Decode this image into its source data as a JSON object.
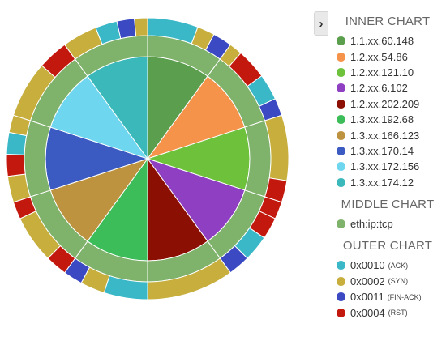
{
  "colors": {
    "inner": [
      "#5a9e4e",
      "#f5934a",
      "#6ec13b",
      "#8e3fc2",
      "#8b0f03",
      "#3dbd59",
      "#bd933f",
      "#3b5bc2",
      "#6fd6ef",
      "#3ab8ba"
    ],
    "middle": "#7fb26b",
    "outer": {
      "ACK": "#3ab8c7",
      "SYN": "#c7ae3d",
      "FIN-ACK": "#3b49c2",
      "RST": "#c2180e"
    }
  },
  "legend": {
    "toggle_icon": "chevron-right-icon",
    "toggle_glyph": "›",
    "inner_title": "INNER CHART",
    "middle_title": "MIDDLE CHART",
    "outer_title": "OUTER CHART",
    "inner_items": [
      {
        "label": "1.1.xx.60.148",
        "color": "#5a9e4e"
      },
      {
        "label": "1.2.xx.54.86",
        "color": "#f5934a"
      },
      {
        "label": "1.2.xx.121.10",
        "color": "#6ec13b"
      },
      {
        "label": "1.2.xx.6.102",
        "color": "#8e3fc2"
      },
      {
        "label": "1.2.xx.202.209",
        "color": "#8b0f03"
      },
      {
        "label": "1.3.xx.192.68",
        "color": "#3dbd59"
      },
      {
        "label": "1.3.xx.166.123",
        "color": "#bd933f"
      },
      {
        "label": "1.3.xx.170.14",
        "color": "#3b5bc2"
      },
      {
        "label": "1.3.xx.172.156",
        "color": "#6fd6ef"
      },
      {
        "label": "1.3.xx.174.12",
        "color": "#3ab8ba"
      }
    ],
    "middle_items": [
      {
        "label": "eth:ip:tcp",
        "color": "#7fb26b"
      }
    ],
    "outer_items": [
      {
        "label": "0x0010",
        "sub": "(ACK)",
        "color": "#3ab8c7"
      },
      {
        "label": "0x0002",
        "sub": "(SYN)",
        "color": "#c7ae3d"
      },
      {
        "label": "0x0011",
        "sub": "(FIN-ACK)",
        "color": "#3b49c2"
      },
      {
        "label": "0x0004",
        "sub": "(RST)",
        "color": "#c2180e"
      }
    ]
  },
  "chart_data": {
    "type": "pie",
    "subtype": "sunburst",
    "rings": {
      "inner": [
        {
          "name": "1.1.xx.60.148",
          "value": 1
        },
        {
          "name": "1.2.xx.54.86",
          "value": 1
        },
        {
          "name": "1.2.xx.121.10",
          "value": 1
        },
        {
          "name": "1.2.xx.6.102",
          "value": 1
        },
        {
          "name": "1.2.xx.202.209",
          "value": 1
        },
        {
          "name": "1.3.xx.192.68",
          "value": 1
        },
        {
          "name": "1.3.xx.166.123",
          "value": 1
        },
        {
          "name": "1.3.xx.170.14",
          "value": 1
        },
        {
          "name": "1.3.xx.172.156",
          "value": 1
        },
        {
          "name": "1.3.xx.174.12",
          "value": 1
        }
      ],
      "middle": [
        {
          "name": "eth:ip:tcp",
          "parent": "1.1.xx.60.148",
          "value": 1
        },
        {
          "name": "eth:ip:tcp",
          "parent": "1.2.xx.54.86",
          "value": 1
        },
        {
          "name": "eth:ip:tcp",
          "parent": "1.2.xx.121.10",
          "value": 1
        },
        {
          "name": "eth:ip:tcp",
          "parent": "1.2.xx.6.102",
          "value": 1
        },
        {
          "name": "eth:ip:tcp",
          "parent": "1.2.xx.202.209",
          "value": 1
        },
        {
          "name": "eth:ip:tcp",
          "parent": "1.3.xx.192.68",
          "value": 1
        },
        {
          "name": "eth:ip:tcp",
          "parent": "1.3.xx.166.123",
          "value": 1
        },
        {
          "name": "eth:ip:tcp",
          "parent": "1.3.xx.170.14",
          "value": 1
        },
        {
          "name": "eth:ip:tcp",
          "parent": "1.3.xx.172.156",
          "value": 1
        },
        {
          "name": "eth:ip:tcp",
          "parent": "1.3.xx.174.12",
          "value": 1
        }
      ],
      "outer": [
        {
          "parent": "1.1.xx.60.148",
          "flags": [
            [
              "ACK",
              0.58
            ],
            [
              "SYN",
              0.2
            ],
            [
              "FIN-ACK",
              0.22
            ]
          ]
        },
        {
          "parent": "1.2.xx.54.86",
          "flags": [
            [
              "SYN",
              0.15
            ],
            [
              "RST",
              0.35
            ],
            [
              "ACK",
              0.3
            ],
            [
              "FIN-ACK",
              0.2
            ]
          ]
        },
        {
          "parent": "1.2.xx.121.10",
          "flags": [
            [
              "SYN",
              0.75
            ],
            [
              "RST",
              0.25
            ]
          ]
        },
        {
          "parent": "1.2.xx.6.102",
          "flags": [
            [
              "RST",
              0.2
            ],
            [
              "RST",
              0.25
            ],
            [
              "ACK",
              0.3
            ],
            [
              "FIN-ACK",
              0.25
            ]
          ]
        },
        {
          "parent": "1.2.xx.202.209",
          "flags": [
            [
              "SYN",
              1.0
            ]
          ]
        },
        {
          "parent": "1.3.xx.192.68",
          "flags": [
            [
              "ACK",
              0.5
            ],
            [
              "SYN",
              0.28
            ],
            [
              "FIN-ACK",
              0.22
            ]
          ]
        },
        {
          "parent": "1.3.xx.166.123",
          "flags": [
            [
              "RST",
              0.25
            ],
            [
              "SYN",
              0.55
            ],
            [
              "RST",
              0.2
            ]
          ]
        },
        {
          "parent": "1.3.xx.170.14",
          "flags": [
            [
              "SYN",
              0.3
            ],
            [
              "RST",
              0.25
            ],
            [
              "ACK",
              0.25
            ],
            [
              "SYN",
              0.2
            ]
          ]
        },
        {
          "parent": "1.3.xx.172.156",
          "flags": [
            [
              "SYN",
              0.65
            ],
            [
              "RST",
              0.35
            ]
          ]
        },
        {
          "parent": "1.3.xx.174.12",
          "flags": [
            [
              "SYN",
              0.4
            ],
            [
              "ACK",
              0.25
            ],
            [
              "FIN-ACK",
              0.2
            ],
            [
              "SYN",
              0.15
            ]
          ]
        }
      ]
    },
    "legend_position": "right"
  }
}
